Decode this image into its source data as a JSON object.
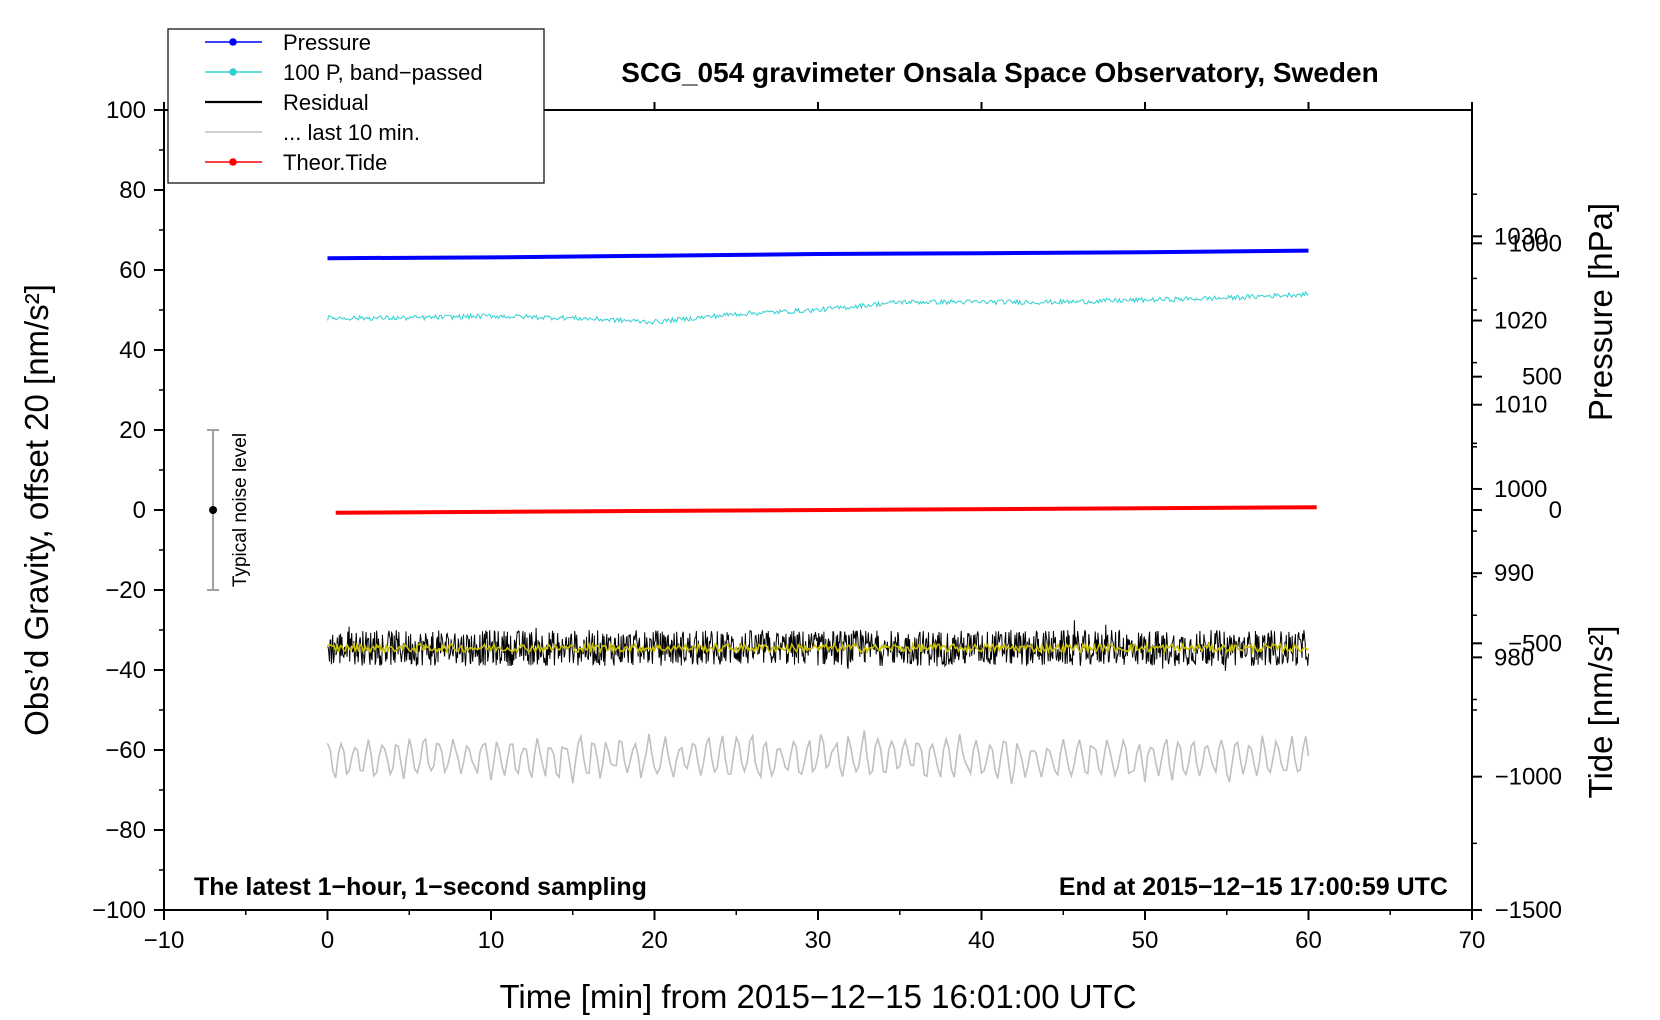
{
  "chart_data": {
    "type": "line",
    "title": "SCG_054 gravimeter Onsala Space Observatory, Sweden",
    "xlabel": "Time [min] from 2015−12−15 16:01:00 UTC",
    "ylabel": "Obs’d Gravity, offset 20 [nm/s²]",
    "xlim": [
      -10,
      70
    ],
    "ylim": [
      -100,
      100
    ],
    "x_ticks": [
      -10,
      0,
      10,
      20,
      30,
      40,
      50,
      60,
      70
    ],
    "x_tick_labels": [
      "−10",
      "0",
      "10",
      "20",
      "30",
      "40",
      "50",
      "60",
      "70"
    ],
    "y_ticks": [
      -100,
      -80,
      -60,
      -40,
      -20,
      0,
      20,
      40,
      60,
      80,
      100
    ],
    "y_tick_labels": [
      "−100",
      "−80",
      "−60",
      "−40",
      "−20",
      "0",
      "20",
      "40",
      "60",
      "80",
      "100"
    ],
    "right_axis_pressure": {
      "label": "Pressure [hPa]",
      "ticks": [
        980,
        990,
        1000,
        1010,
        1020,
        1030
      ],
      "tick_labels": [
        "980",
        "990",
        "1000",
        "1010",
        "1020",
        "1030"
      ],
      "range": [
        950,
        1045
      ]
    },
    "right_axis_tide": {
      "label": "Tide [nm/s²]",
      "ticks": [
        -1500,
        -1000,
        -500,
        0,
        500,
        1000
      ],
      "tick_labels": [
        "−1500",
        "−1000",
        "−500",
        "0",
        "500",
        "1000"
      ],
      "range": [
        -1500,
        1500
      ]
    },
    "legend": {
      "placement": "top-left",
      "entries": [
        {
          "label": "Pressure",
          "color": "#0000ff",
          "marker": true
        },
        {
          "label": "100 P, band−passed",
          "color": "#30d0d0",
          "marker": true
        },
        {
          "label": "Residual",
          "color": "#000000",
          "marker": false
        },
        {
          "label": "... last 10 min.",
          "color": "#c0c0c0",
          "marker": false
        },
        {
          "label": "Theor.Tide",
          "color": "#ff0000",
          "marker": true
        }
      ]
    },
    "series": [
      {
        "name": "Pressure",
        "axis": "pressure",
        "color": "#0000ff",
        "x": [
          0,
          10,
          20,
          30,
          40,
          50,
          60
        ],
        "values": [
          1027.4,
          1027.5,
          1027.7,
          1027.9,
          1028.0,
          1028.1,
          1028.3
        ]
      },
      {
        "name": "100 P, band−passed",
        "axis": "left",
        "color": "#30d0d0",
        "x": [
          0,
          5,
          10,
          15,
          20,
          25,
          30,
          35,
          40,
          45,
          50,
          55,
          60
        ],
        "values": [
          48,
          48,
          48.5,
          48,
          47,
          49,
          50,
          52,
          52,
          52,
          52.5,
          53,
          54
        ],
        "noise": 0.6
      },
      {
        "name": "Residual",
        "axis": "left",
        "color": "#000000",
        "x_range": [
          0,
          60
        ],
        "center": -34.5,
        "noise": 5
      },
      {
        "name": "Residual smoothed",
        "axis": "left",
        "color": "#c8c000",
        "x_range": [
          0,
          60
        ],
        "center": -34.5,
        "noise": 1
      },
      {
        "name": "... last 10 min.",
        "axis": "left",
        "color": "#c0c0c0",
        "x_range": [
          0,
          60
        ],
        "center": -62,
        "noise": 4
      },
      {
        "name": "Theor.Tide",
        "axis": "tide",
        "color": "#ff0000",
        "x": [
          0,
          60
        ],
        "values": [
          -10,
          10
        ]
      }
    ],
    "noise_bar": {
      "x": -7,
      "center": 0,
      "low": -20,
      "high": 20,
      "label": "Typical noise level"
    },
    "annotations": {
      "left": "The latest 1−hour, 1−second sampling",
      "right": "End at 2015−12−15 17:00:59 UTC"
    },
    "colors": {
      "pressure": "#0000ff",
      "bandpassed": "#30d0d0",
      "residual": "#000000",
      "smoothed": "#c8c000",
      "last10": "#c0c0c0",
      "tide": "#ff0000",
      "noise_bar": "#a0a0a0"
    }
  }
}
